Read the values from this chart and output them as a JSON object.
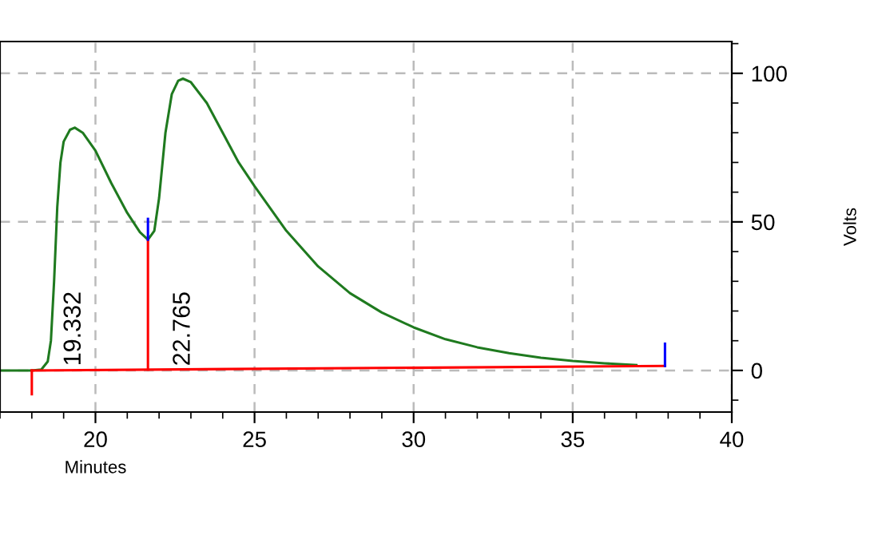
{
  "chart_data": {
    "type": "line",
    "xlabel": "Minutes",
    "ylabel": "Volts",
    "xlim": [
      17,
      40
    ],
    "xticks": [
      20,
      25,
      30,
      35,
      40
    ],
    "ylim": [
      -14,
      110.7
    ],
    "yticks": [
      0,
      50,
      100
    ],
    "grid": true,
    "marker": "none",
    "line_style": "solid",
    "series": [
      {
        "color": "#1f7a1f",
        "x": [
          17,
          18,
          18.3,
          18.5,
          18.6,
          18.7,
          18.8,
          18.9,
          19.0,
          19.2,
          19.35,
          19.6,
          20,
          20.5,
          21,
          21.4,
          21.65,
          21.85,
          22,
          22.2,
          22.4,
          22.6,
          22.75,
          23,
          23.5,
          24,
          24.5,
          25,
          26,
          27,
          28,
          29,
          30,
          31,
          32,
          33,
          34,
          35,
          36,
          37
        ],
        "values": [
          0,
          0,
          0.3,
          3,
          10,
          30,
          55,
          70,
          77,
          81,
          81.7,
          80,
          74,
          63,
          53,
          46.5,
          44,
          47,
          58,
          80,
          93,
          97.5,
          98.2,
          97,
          90,
          80,
          70,
          62,
          47,
          35,
          26,
          19.5,
          14.5,
          10.5,
          7.8,
          5.8,
          4.3,
          3.2,
          2.4,
          1.8
        ]
      },
      {
        "color": "#ff0000",
        "x": [
          18,
          37.9
        ],
        "values": [
          0,
          1.5
        ]
      },
      {
        "color": "#ff0000",
        "x": [
          18,
          18
        ],
        "values": [
          0,
          -8
        ]
      },
      {
        "color": "#ff0000",
        "x": [
          21.65,
          21.65
        ],
        "values": [
          0.3,
          44
        ]
      },
      {
        "color": "#0000ff",
        "x": [
          21.65,
          21.65
        ],
        "values": [
          44,
          51
        ]
      },
      {
        "color": "#0000ff",
        "x": [
          37.9,
          37.9
        ],
        "values": [
          1.5,
          9
        ]
      }
    ],
    "annotations": [
      {
        "text": "19.332",
        "x": 19.332,
        "y": 0
      },
      {
        "text": "22.765",
        "x": 22.765,
        "y": 0
      }
    ]
  }
}
